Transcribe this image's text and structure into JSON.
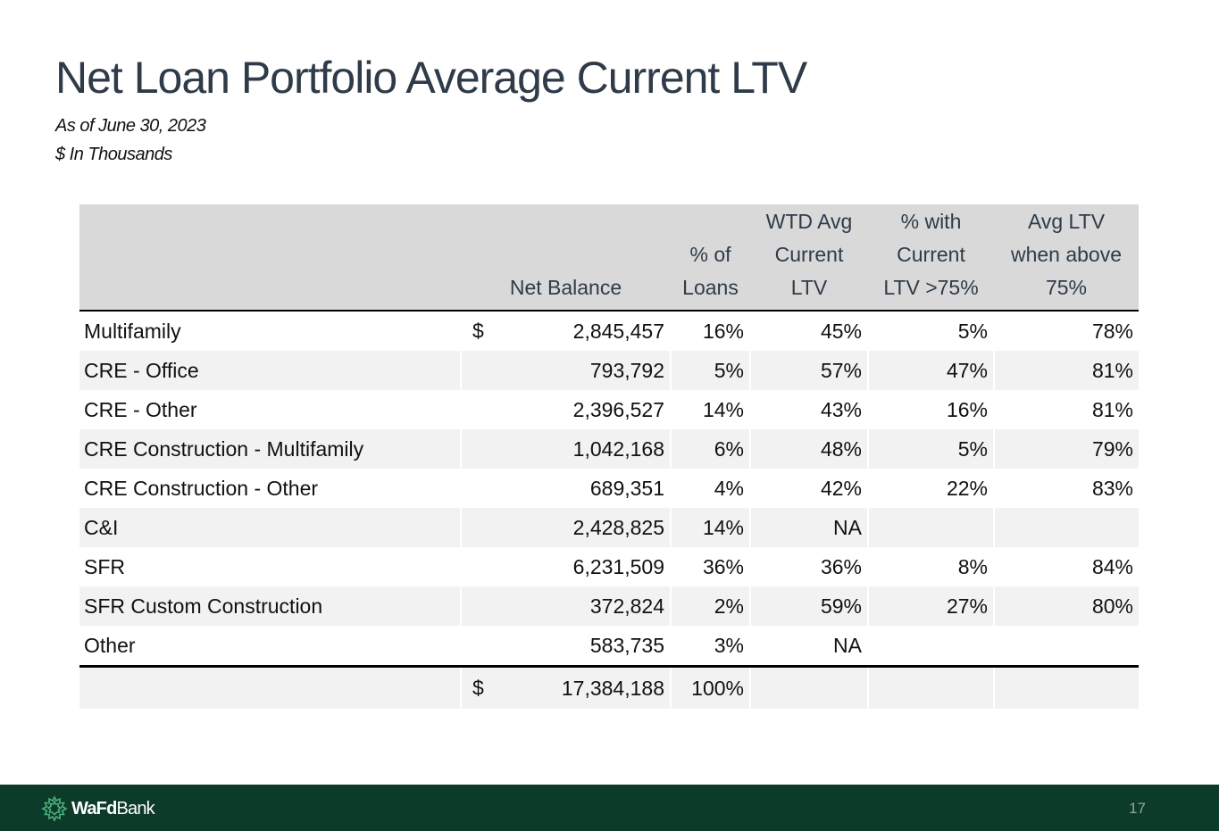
{
  "title": "Net Loan Portfolio Average Current LTV",
  "subtitle_date": "As of June 30, 2023",
  "subtitle_units": "$ In Thousands",
  "table": {
    "headers": {
      "balance": [
        "Net Balance"
      ],
      "pct_loans": [
        "% of",
        "Loans"
      ],
      "wtd_avg": [
        "WTD Avg",
        "Current",
        "LTV"
      ],
      "pct_above": [
        "% with",
        "Current",
        "LTV >75%"
      ],
      "avg_above": [
        "Avg LTV",
        "when above",
        "75%"
      ]
    },
    "currency_symbol": "$",
    "rows": [
      {
        "category": "Multifamily",
        "balance": "2,845,457",
        "pct_loans": "16%",
        "wtd_avg": "45%",
        "pct_above": "5%",
        "avg_above": "78%"
      },
      {
        "category": "CRE - Office",
        "balance": "793,792",
        "pct_loans": "5%",
        "wtd_avg": "57%",
        "pct_above": "47%",
        "avg_above": "81%"
      },
      {
        "category": "CRE - Other",
        "balance": "2,396,527",
        "pct_loans": "14%",
        "wtd_avg": "43%",
        "pct_above": "16%",
        "avg_above": "81%"
      },
      {
        "category": "CRE Construction - Multifamily",
        "balance": "1,042,168",
        "pct_loans": "6%",
        "wtd_avg": "48%",
        "pct_above": "5%",
        "avg_above": "79%"
      },
      {
        "category": "CRE Construction - Other",
        "balance": "689,351",
        "pct_loans": "4%",
        "wtd_avg": "42%",
        "pct_above": "22%",
        "avg_above": "83%"
      },
      {
        "category": "C&I",
        "balance": "2,428,825",
        "pct_loans": "14%",
        "wtd_avg": "NA",
        "pct_above": "",
        "avg_above": ""
      },
      {
        "category": "SFR",
        "balance": "6,231,509",
        "pct_loans": "36%",
        "wtd_avg": "36%",
        "pct_above": "8%",
        "avg_above": "84%"
      },
      {
        "category": "SFR Custom Construction",
        "balance": "372,824",
        "pct_loans": "2%",
        "wtd_avg": "59%",
        "pct_above": "27%",
        "avg_above": "80%"
      },
      {
        "category": "Other",
        "balance": "583,735",
        "pct_loans": "3%",
        "wtd_avg": "NA",
        "pct_above": "",
        "avg_above": ""
      }
    ],
    "total": {
      "balance": "17,384,188",
      "pct_loans": "100%"
    }
  },
  "footer": {
    "brand_bold": "WaFd",
    "brand_regular": "Bank",
    "page_number": "17",
    "bar_color": "#0d3b2a"
  }
}
